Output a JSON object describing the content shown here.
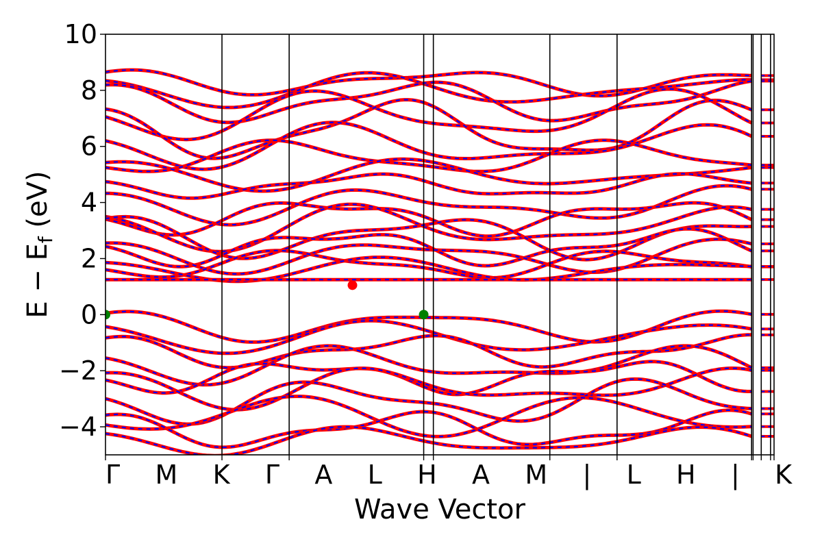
{
  "chart_data": {
    "type": "line",
    "xlabel": "Wave Vector",
    "ylabel": "E − E",
    "ylabel_sub": "f",
    "ylabel_unit": " (eV)",
    "ylim": [
      -5,
      10
    ],
    "yticks": [
      {
        "value": 10,
        "label": "10"
      },
      {
        "value": 8,
        "label": "8"
      },
      {
        "value": 6,
        "label": "6"
      },
      {
        "value": 4,
        "label": "4"
      },
      {
        "value": 2,
        "label": "2"
      },
      {
        "value": 0,
        "label": "0"
      },
      {
        "value": -2,
        "label": "−2"
      },
      {
        "value": -4,
        "label": "−4"
      }
    ],
    "kpath": [
      {
        "label": "Γ",
        "x": 0.0
      },
      {
        "label": "M",
        "x": 1.0
      },
      {
        "label": "K",
        "x": 1.577
      },
      {
        "label": "Γ",
        "x": 2.732
      },
      {
        "label": "A",
        "x": 2.815
      },
      {
        "label": "L",
        "x": 3.815
      },
      {
        "label": "H",
        "x": 4.392
      },
      {
        "label": "A",
        "x": 5.547
      },
      {
        "label": "M",
        "x": 5.56
      },
      {
        "label": "L",
        "x": 5.63
      },
      {
        "label": "H",
        "x": 5.71
      },
      {
        "label": "K",
        "x": 5.74
      }
    ],
    "xlim": [
      0,
      5.74
    ],
    "bottom_labels_text": "ΓMKΓALHAM|LH|K",
    "series": [
      {
        "role": "spin-up",
        "color": "#ff0000",
        "style": "solid"
      },
      {
        "role": "spin-down",
        "color": "#0000ff",
        "style": "dashed"
      }
    ],
    "cbm": {
      "x": 2.12,
      "y": 1.05,
      "color": "#ff0000"
    },
    "vbm": [
      {
        "x": 0.0,
        "y": 0.0,
        "color": "#008000"
      },
      {
        "x": 2.732,
        "y": 0.0,
        "color": "#008000"
      }
    ],
    "flat_band": 1.25
  }
}
